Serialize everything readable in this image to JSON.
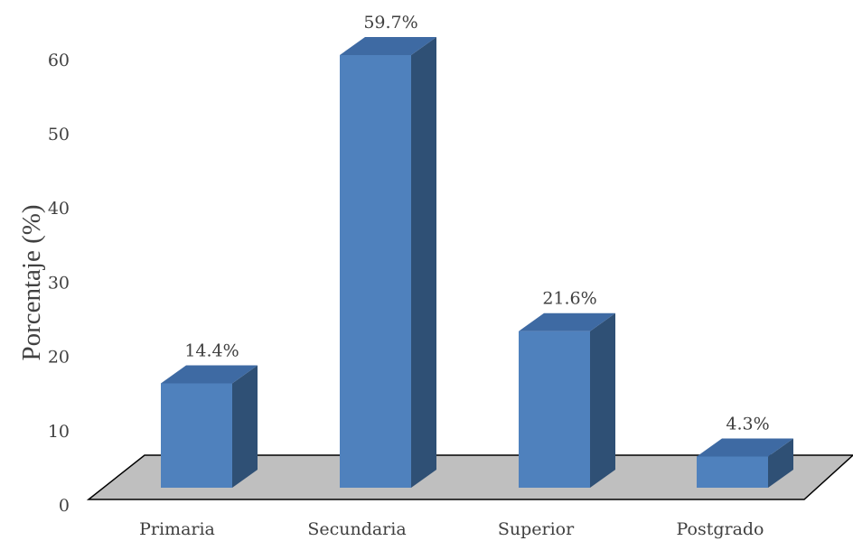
{
  "chart_data": {
    "type": "bar",
    "categories": [
      "Primaria",
      "Secundaria",
      "Superior",
      "Postgrado"
    ],
    "values": [
      14.4,
      59.7,
      21.6,
      4.3
    ],
    "data_labels": [
      "14.4%",
      "59.7%",
      "21.6%",
      "4.3%"
    ],
    "title": "",
    "xlabel": "",
    "ylabel": "Porcentaje (%)",
    "ylim": [
      0,
      60
    ],
    "yticks": [
      0,
      10,
      20,
      30,
      40,
      50,
      60
    ],
    "grid": false,
    "legend": "none",
    "style": "3d-column",
    "colors": {
      "bar_front": "#4f81bd",
      "bar_top": "#3e6aa3",
      "bar_side": "#2f5075",
      "floor": "#bfbfbf",
      "floor_edge": "#000000"
    }
  }
}
